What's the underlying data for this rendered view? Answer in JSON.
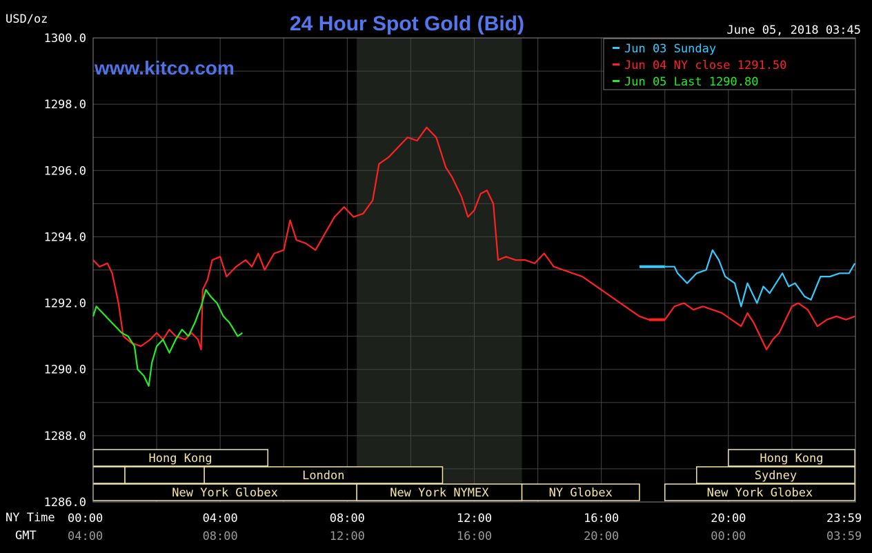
{
  "chart_data": {
    "type": "line",
    "title": "24 Hour Spot Gold (Bid)",
    "site": "www.kitco.com",
    "timestamp": "June 05, 2018 03:45",
    "unit_label": "USD/oz",
    "ylim": [
      1286.0,
      1300.0
    ],
    "y_ticks": [
      "1300.0",
      "1298.0",
      "1296.0",
      "1294.0",
      "1292.0",
      "1290.0",
      "1288.0",
      "1286.0"
    ],
    "y_tick_values": [
      1300,
      1298,
      1296,
      1294,
      1292,
      1290,
      1288,
      1286
    ],
    "xlim_hours": [
      0,
      24
    ],
    "x_row_label_ny": "NY Time",
    "x_row_label_gmt": "GMT",
    "x_ticks_ny": [
      {
        "h": 0,
        "label": "00:00"
      },
      {
        "h": 4,
        "label": "04:00"
      },
      {
        "h": 8,
        "label": "08:00"
      },
      {
        "h": 12,
        "label": "12:00"
      },
      {
        "h": 16,
        "label": "16:00"
      },
      {
        "h": 20,
        "label": "20:00"
      },
      {
        "h": 23.983,
        "label": "23:59"
      }
    ],
    "x_ticks_gmt": [
      {
        "h": 0,
        "label": "04:00"
      },
      {
        "h": 4,
        "label": "08:00"
      },
      {
        "h": 8,
        "label": "12:00"
      },
      {
        "h": 12,
        "label": "16:00"
      },
      {
        "h": 16,
        "label": "20:00"
      },
      {
        "h": 20,
        "label": "00:00"
      },
      {
        "h": 23.983,
        "label": "03:59"
      }
    ],
    "highlight_hours": [
      8.3,
      13.5
    ],
    "grid": true,
    "legend_position": "top-right",
    "legend": [
      {
        "name": "Jun 03 Sunday",
        "color": "#33ccff"
      },
      {
        "name": "Jun 04 NY close 1291.50",
        "color": "#ff2222"
      },
      {
        "name": "Jun 05 Last 1290.80",
        "color": "#22ee22"
      }
    ],
    "series": [
      {
        "name": "Jun 03 Sunday",
        "color": "#33ccff",
        "points": [
          [
            18,
            1293.1
          ],
          [
            18.3,
            1293.1
          ],
          [
            18.4,
            1292.9
          ],
          [
            18.7,
            1292.6
          ],
          [
            19,
            1292.9
          ],
          [
            19.3,
            1293.0
          ],
          [
            19.5,
            1293.6
          ],
          [
            19.7,
            1293.3
          ],
          [
            19.9,
            1292.8
          ],
          [
            20.2,
            1292.6
          ],
          [
            20.4,
            1291.9
          ],
          [
            20.6,
            1292.6
          ],
          [
            20.8,
            1292.2
          ],
          [
            20.9,
            1292.0
          ],
          [
            21.1,
            1292.5
          ],
          [
            21.3,
            1292.3
          ],
          [
            21.5,
            1292.6
          ],
          [
            21.7,
            1292.9
          ],
          [
            21.9,
            1292.5
          ],
          [
            22.1,
            1292.6
          ],
          [
            22.4,
            1292.2
          ],
          [
            22.6,
            1292.1
          ],
          [
            22.9,
            1292.8
          ],
          [
            23.2,
            1292.8
          ],
          [
            23.5,
            1292.9
          ],
          [
            23.8,
            1292.9
          ],
          [
            23.98,
            1293.2
          ]
        ]
      },
      {
        "name": "Jun 04 NY close 1291.50",
        "color": "#ff2222",
        "points": [
          [
            0,
            1293.3
          ],
          [
            0.2,
            1293.1
          ],
          [
            0.45,
            1293.2
          ],
          [
            0.6,
            1292.9
          ],
          [
            0.8,
            1292.0
          ],
          [
            0.95,
            1291.0
          ],
          [
            1.2,
            1290.8
          ],
          [
            1.5,
            1290.7
          ],
          [
            1.8,
            1290.9
          ],
          [
            2.0,
            1291.1
          ],
          [
            2.2,
            1290.9
          ],
          [
            2.4,
            1291.2
          ],
          [
            2.6,
            1291.0
          ],
          [
            2.9,
            1290.9
          ],
          [
            3.1,
            1291.1
          ],
          [
            3.3,
            1290.9
          ],
          [
            3.4,
            1290.6
          ],
          [
            3.45,
            1292.4
          ],
          [
            3.6,
            1292.7
          ],
          [
            3.75,
            1293.3
          ],
          [
            4.0,
            1293.4
          ],
          [
            4.2,
            1292.8
          ],
          [
            4.5,
            1293.1
          ],
          [
            4.8,
            1293.3
          ],
          [
            5.0,
            1293.1
          ],
          [
            5.2,
            1293.5
          ],
          [
            5.4,
            1293.0
          ],
          [
            5.7,
            1293.5
          ],
          [
            6.0,
            1293.6
          ],
          [
            6.2,
            1294.5
          ],
          [
            6.4,
            1293.9
          ],
          [
            6.7,
            1293.8
          ],
          [
            7.0,
            1293.6
          ],
          [
            7.3,
            1294.1
          ],
          [
            7.6,
            1294.6
          ],
          [
            7.9,
            1294.9
          ],
          [
            8.2,
            1294.6
          ],
          [
            8.5,
            1294.7
          ],
          [
            8.8,
            1295.1
          ],
          [
            9.0,
            1296.2
          ],
          [
            9.3,
            1296.4
          ],
          [
            9.6,
            1296.7
          ],
          [
            9.9,
            1297.0
          ],
          [
            10.2,
            1296.9
          ],
          [
            10.5,
            1297.3
          ],
          [
            10.8,
            1297.0
          ],
          [
            11.1,
            1296.1
          ],
          [
            11.3,
            1295.8
          ],
          [
            11.6,
            1295.2
          ],
          [
            11.8,
            1294.6
          ],
          [
            12.0,
            1294.8
          ],
          [
            12.2,
            1295.3
          ],
          [
            12.4,
            1295.4
          ],
          [
            12.6,
            1295.0
          ],
          [
            12.75,
            1293.3
          ],
          [
            13.0,
            1293.4
          ],
          [
            13.3,
            1293.3
          ],
          [
            13.6,
            1293.3
          ],
          [
            13.9,
            1293.2
          ],
          [
            14.2,
            1293.5
          ],
          [
            14.5,
            1293.1
          ],
          [
            14.8,
            1293.0
          ],
          [
            15.1,
            1292.9
          ],
          [
            15.4,
            1292.8
          ],
          [
            15.7,
            1292.6
          ],
          [
            16.0,
            1292.4
          ],
          [
            16.3,
            1292.2
          ],
          [
            16.6,
            1292.0
          ],
          [
            16.9,
            1291.8
          ],
          [
            17.2,
            1291.6
          ],
          [
            17.5,
            1291.5
          ],
          [
            17.8,
            1291.5
          ],
          [
            18.0,
            1291.5
          ],
          [
            18.3,
            1291.9
          ],
          [
            18.6,
            1292.0
          ],
          [
            18.9,
            1291.8
          ],
          [
            19.2,
            1291.9
          ],
          [
            19.5,
            1291.8
          ],
          [
            19.8,
            1291.7
          ],
          [
            20.1,
            1291.5
          ],
          [
            20.4,
            1291.3
          ],
          [
            20.6,
            1291.7
          ],
          [
            20.8,
            1291.4
          ],
          [
            21.0,
            1291.0
          ],
          [
            21.2,
            1290.6
          ],
          [
            21.4,
            1290.9
          ],
          [
            21.6,
            1291.1
          ],
          [
            21.8,
            1291.5
          ],
          [
            22.0,
            1291.9
          ],
          [
            22.2,
            1292.0
          ],
          [
            22.5,
            1291.8
          ],
          [
            22.8,
            1291.3
          ],
          [
            23.1,
            1291.5
          ],
          [
            23.4,
            1291.6
          ],
          [
            23.7,
            1291.5
          ],
          [
            23.98,
            1291.6
          ]
        ]
      },
      {
        "name": "Jun 05 Last 1290.80",
        "color": "#22ee22",
        "points": [
          [
            0,
            1291.6
          ],
          [
            0.1,
            1291.9
          ],
          [
            0.3,
            1291.7
          ],
          [
            0.5,
            1291.5
          ],
          [
            0.7,
            1291.3
          ],
          [
            0.9,
            1291.1
          ],
          [
            1.1,
            1291.0
          ],
          [
            1.3,
            1290.7
          ],
          [
            1.4,
            1290.0
          ],
          [
            1.6,
            1289.8
          ],
          [
            1.75,
            1289.5
          ],
          [
            1.85,
            1290.2
          ],
          [
            2.0,
            1290.7
          ],
          [
            2.2,
            1290.9
          ],
          [
            2.4,
            1290.5
          ],
          [
            2.6,
            1290.9
          ],
          [
            2.8,
            1291.2
          ],
          [
            3.0,
            1291.0
          ],
          [
            3.2,
            1291.4
          ],
          [
            3.4,
            1291.9
          ],
          [
            3.55,
            1292.4
          ],
          [
            3.7,
            1292.2
          ],
          [
            3.9,
            1292.0
          ],
          [
            4.1,
            1291.6
          ],
          [
            4.3,
            1291.4
          ],
          [
            4.55,
            1291.0
          ],
          [
            4.7,
            1291.1
          ]
        ]
      }
    ]
  },
  "sessions": {
    "rows": [
      [
        {
          "label": "Hong Kong",
          "h0": 0.0,
          "h1": 5.5
        },
        {
          "label": "Hong Kong",
          "h0": 20.0,
          "h1": 23.98
        }
      ],
      [
        {
          "label": "",
          "h0": 0.0,
          "h1": 1.0
        },
        {
          "label": "",
          "h0": 1.0,
          "h1": 3.5
        },
        {
          "label": "London",
          "h0": 3.5,
          "h1": 11.0
        },
        {
          "label": "Sydney",
          "h0": 19.0,
          "h1": 23.98
        }
      ],
      [
        {
          "label": "New York Globex",
          "h0": 0.0,
          "h1": 8.3
        },
        {
          "label": "New York NYMEX",
          "h0": 8.3,
          "h1": 13.5
        },
        {
          "label": "NY Globex",
          "h0": 13.5,
          "h1": 17.2
        },
        {
          "label": "New York Globex",
          "h0": 18.0,
          "h1": 23.98
        }
      ]
    ]
  }
}
